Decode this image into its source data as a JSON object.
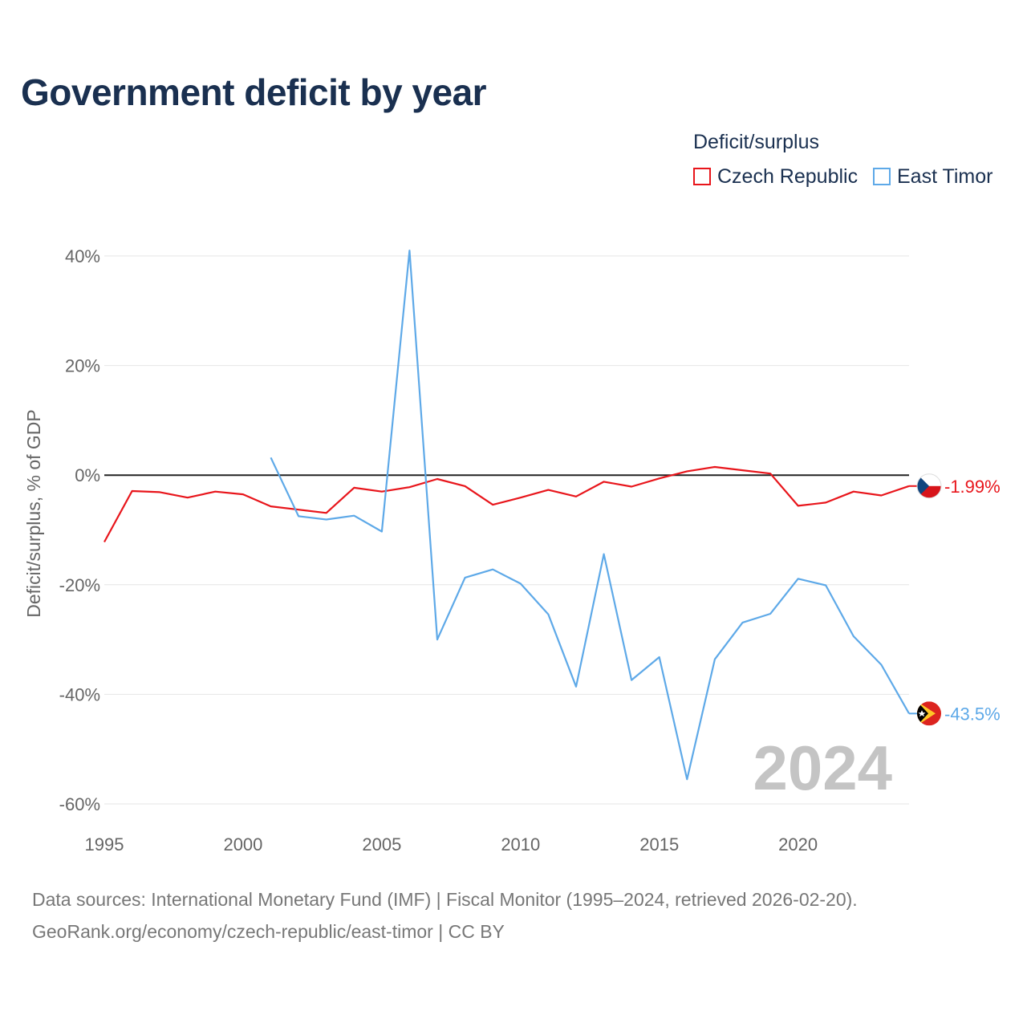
{
  "title": "Government deficit by year",
  "legend": {
    "title": "Deficit/surplus",
    "items": [
      {
        "label": "Czech Republic",
        "color": "#e8151b"
      },
      {
        "label": "East Timor",
        "color": "#5ea9e8"
      }
    ]
  },
  "current_year": "2024",
  "end_labels": {
    "czech": "-1.99%",
    "timor": "-43.5%"
  },
  "source": {
    "line1": "Data sources: International Monetary Fund (IMF) | Fiscal Monitor (1995–2024, retrieved 2026-02-20).",
    "line2": "GeoRank.org/economy/czech-republic/east-timor | CC BY"
  },
  "chart_data": {
    "type": "line",
    "title": "Government deficit by year",
    "xlabel": "",
    "ylabel": "Deficit/surplus, % of GDP",
    "xlim": [
      1995,
      2024
    ],
    "ylim": [
      -60,
      40
    ],
    "x_ticks": [
      1995,
      2000,
      2005,
      2010,
      2015,
      2020
    ],
    "y_ticks": [
      40,
      20,
      0,
      -20,
      -40,
      -60
    ],
    "y_tick_labels": [
      "40%",
      "20%",
      "0%",
      "-20%",
      "-40%",
      "-60%"
    ],
    "grid": true,
    "series": [
      {
        "name": "Czech Republic",
        "color": "#e8151b",
        "x": [
          1995,
          1996,
          1997,
          1998,
          1999,
          2000,
          2001,
          2002,
          2003,
          2004,
          2005,
          2006,
          2007,
          2008,
          2009,
          2010,
          2011,
          2012,
          2013,
          2014,
          2015,
          2016,
          2017,
          2018,
          2019,
          2020,
          2021,
          2022,
          2023,
          2024
        ],
        "values": [
          -12.2,
          -2.9,
          -3.1,
          -4.1,
          -3.0,
          -3.5,
          -5.7,
          -6.3,
          -6.9,
          -2.3,
          -3.0,
          -2.2,
          -0.7,
          -2.0,
          -5.4,
          -4.1,
          -2.7,
          -3.9,
          -1.2,
          -2.1,
          -0.6,
          0.7,
          1.5,
          0.9,
          0.3,
          -5.6,
          -5.0,
          -3.0,
          -3.7,
          -1.99
        ]
      },
      {
        "name": "East Timor",
        "color": "#5ea9e8",
        "x": [
          2001,
          2002,
          2003,
          2004,
          2005,
          2006,
          2007,
          2008,
          2009,
          2010,
          2011,
          2012,
          2013,
          2014,
          2015,
          2016,
          2017,
          2018,
          2019,
          2020,
          2021,
          2022,
          2023,
          2024
        ],
        "values": [
          3.2,
          -7.5,
          -8.1,
          -7.4,
          -10.3,
          41.0,
          -30.0,
          -18.7,
          -17.2,
          -19.8,
          -25.4,
          -38.6,
          -14.4,
          -37.4,
          -33.2,
          -55.5,
          -33.6,
          -26.9,
          -25.3,
          -18.9,
          -20.1,
          -29.4,
          -34.6,
          -43.5
        ]
      }
    ]
  }
}
